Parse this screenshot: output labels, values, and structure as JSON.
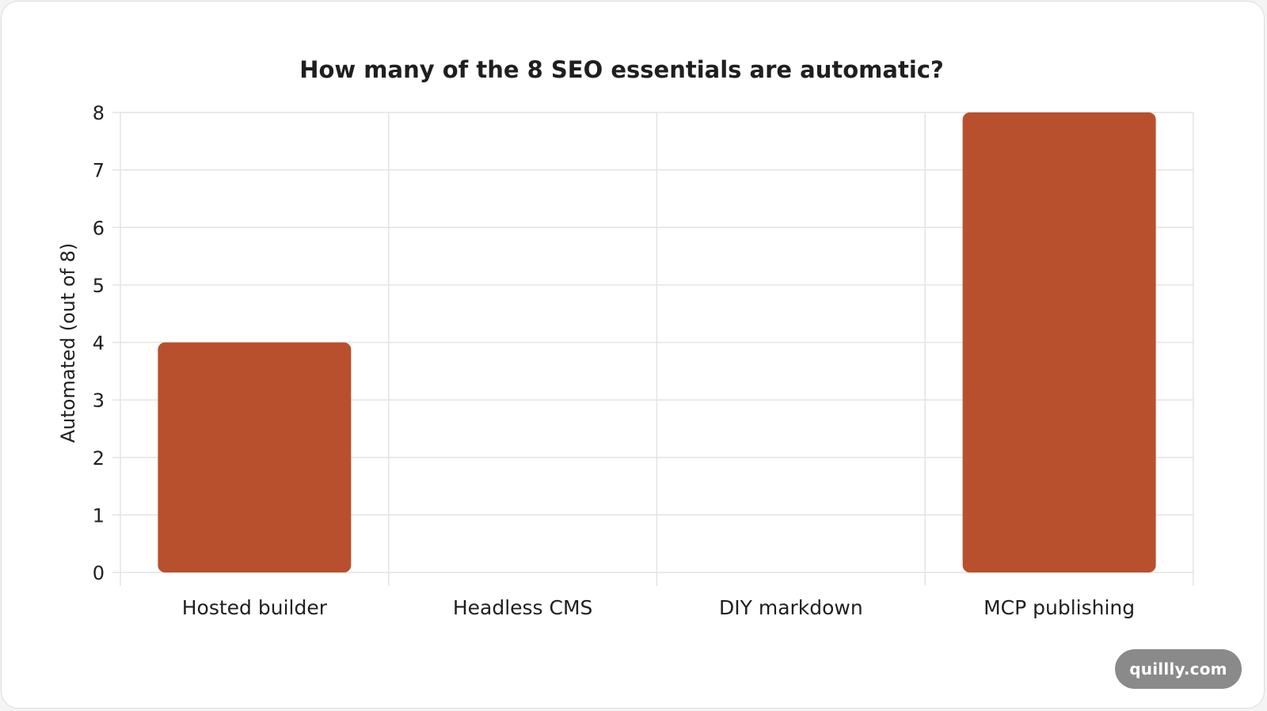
{
  "chart_data": {
    "type": "bar",
    "title": "How many of the 8 SEO essentials are automatic?",
    "xlabel": "",
    "ylabel": "Automated (out of 8)",
    "categories": [
      "Hosted builder",
      "Headless CMS",
      "DIY markdown",
      "MCP publishing"
    ],
    "values": [
      4,
      0,
      0,
      8
    ],
    "ylim": [
      0,
      8
    ],
    "yticks": [
      0,
      1,
      2,
      3,
      4,
      5,
      6,
      7,
      8
    ],
    "grid": true,
    "legend": "none"
  },
  "watermark": {
    "text": "quillly.com"
  },
  "colors": {
    "bar": "#b9502d",
    "grid": "#e3e3e3",
    "text": "#1f1f1f",
    "badge": "#8a8a8a"
  }
}
